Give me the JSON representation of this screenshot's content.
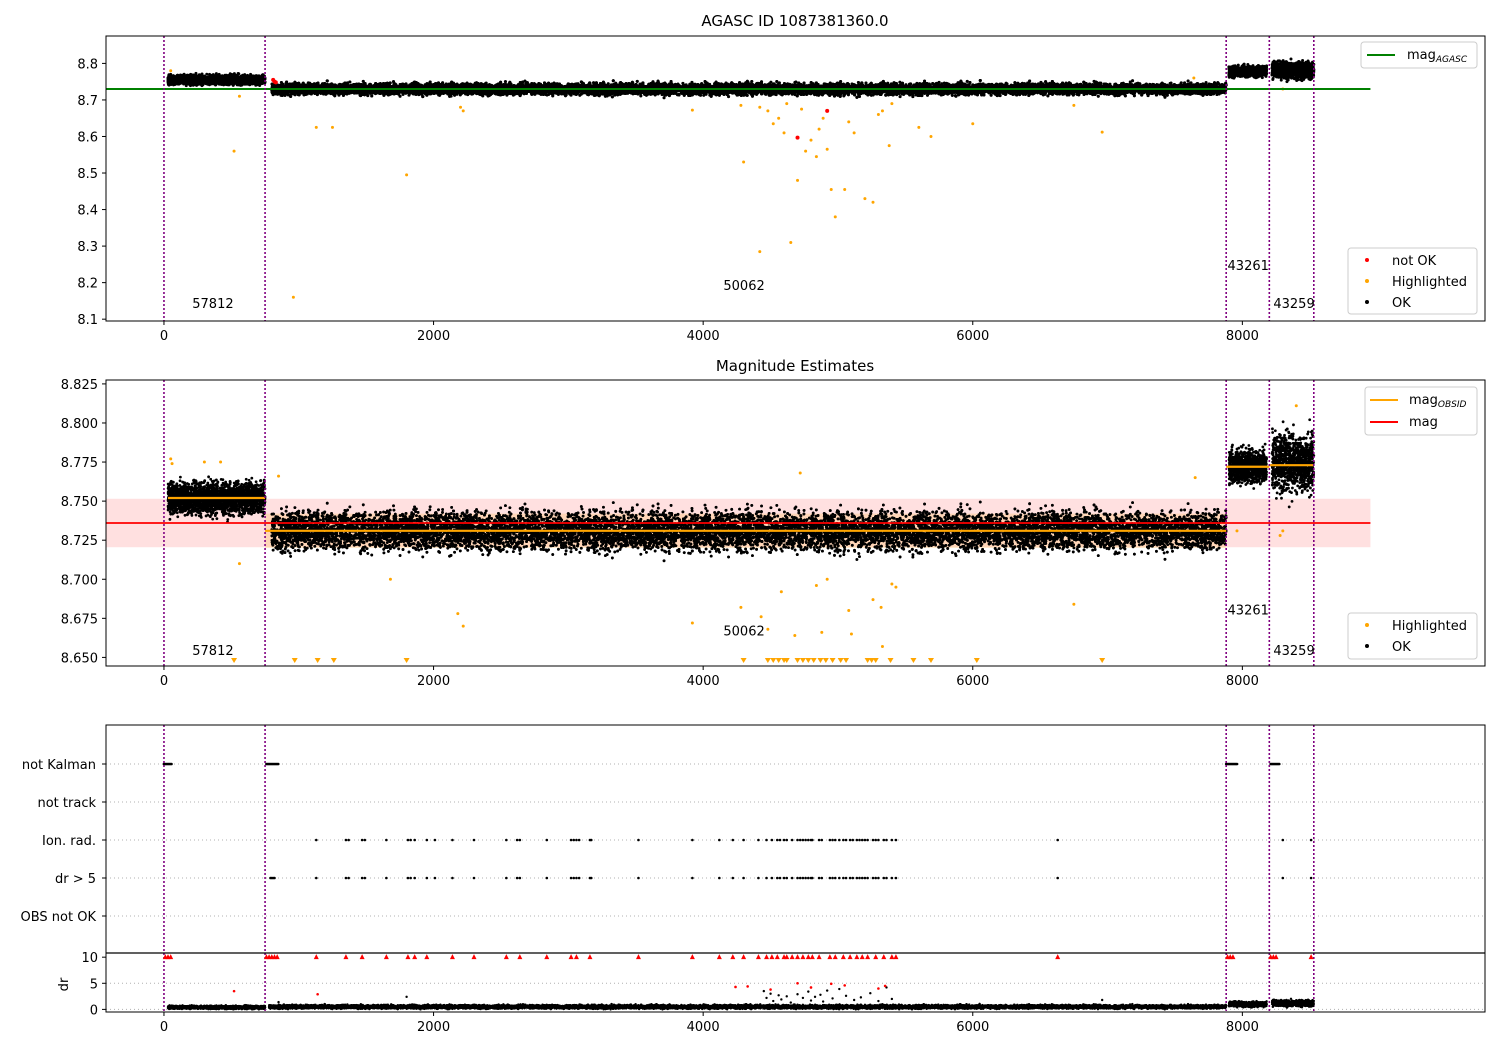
{
  "chart_data": [
    {
      "type": "scatter",
      "title": "AGASC ID 1087381360.0",
      "xlabel": "",
      "ylabel": "",
      "xlim": [
        -430,
        9800
      ],
      "ylim": [
        8.095,
        8.875
      ],
      "xticks": [
        0,
        2000,
        4000,
        6000,
        8000
      ],
      "xtick_labels": [
        "0",
        "2000",
        "4000",
        "6000",
        "8000"
      ],
      "yticks": [
        8.1,
        8.2,
        8.3,
        8.4,
        8.5,
        8.6,
        8.7,
        8.8
      ],
      "ytick_labels": [
        "8.1",
        "8.2",
        "8.3",
        "8.4",
        "8.5",
        "8.6",
        "8.7",
        "8.8"
      ],
      "vlines": [
        0,
        750,
        7880,
        8200,
        8530
      ],
      "obsid_labels": [
        {
          "x": 210,
          "y": 8.13,
          "text": "57812"
        },
        {
          "x": 4150,
          "y": 8.18,
          "text": "50062"
        },
        {
          "x": 7890,
          "y": 8.235,
          "text": "43261"
        },
        {
          "x": 8230,
          "y": 8.13,
          "text": "43259"
        }
      ],
      "hlines": [
        {
          "name": "mag_AGASC",
          "label_main": "mag",
          "label_sub": "AGASC",
          "y": 8.73,
          "x0": -430,
          "x1": 8950,
          "color": "#008000"
        }
      ],
      "scatter_legend": [
        {
          "name": "not OK",
          "color": "#ff0000"
        },
        {
          "name": "Highlighted",
          "color": "#ffa500"
        },
        {
          "name": "OK",
          "color": "#000000"
        }
      ],
      "ok_segments": [
        {
          "x0": 30,
          "x1": 750,
          "y": 8.755,
          "spread": 0.012
        },
        {
          "x0": 800,
          "x1": 7880,
          "y": 8.73,
          "spread": 0.015
        },
        {
          "x0": 7900,
          "x1": 8180,
          "y": 8.778,
          "spread": 0.014
        },
        {
          "x0": 8220,
          "x1": 8530,
          "y": 8.782,
          "spread": 0.022
        }
      ],
      "not_ok_points": [
        {
          "x": 810,
          "y": 8.755
        },
        {
          "x": 820,
          "y": 8.75
        },
        {
          "x": 830,
          "y": 8.748
        },
        {
          "x": 4700,
          "y": 8.597
        },
        {
          "x": 4920,
          "y": 8.67
        }
      ],
      "highlighted_points": [
        {
          "x": 50,
          "y": 8.78
        },
        {
          "x": 520,
          "y": 8.56
        },
        {
          "x": 560,
          "y": 8.71
        },
        {
          "x": 960,
          "y": 8.16
        },
        {
          "x": 1130,
          "y": 8.625
        },
        {
          "x": 1250,
          "y": 8.625
        },
        {
          "x": 1800,
          "y": 8.495
        },
        {
          "x": 2200,
          "y": 8.68
        },
        {
          "x": 2220,
          "y": 8.67
        },
        {
          "x": 3920,
          "y": 8.672
        },
        {
          "x": 4280,
          "y": 8.685
        },
        {
          "x": 4300,
          "y": 8.53
        },
        {
          "x": 4420,
          "y": 8.68
        },
        {
          "x": 4480,
          "y": 8.67
        },
        {
          "x": 4520,
          "y": 8.635
        },
        {
          "x": 4560,
          "y": 8.65
        },
        {
          "x": 4600,
          "y": 8.61
        },
        {
          "x": 4620,
          "y": 8.69
        },
        {
          "x": 4650,
          "y": 8.31
        },
        {
          "x": 4700,
          "y": 8.48
        },
        {
          "x": 4730,
          "y": 8.675
        },
        {
          "x": 4760,
          "y": 8.56
        },
        {
          "x": 4800,
          "y": 8.59
        },
        {
          "x": 4840,
          "y": 8.545
        },
        {
          "x": 4860,
          "y": 8.62
        },
        {
          "x": 4890,
          "y": 8.65
        },
        {
          "x": 4920,
          "y": 8.565
        },
        {
          "x": 4950,
          "y": 8.455
        },
        {
          "x": 4980,
          "y": 8.38
        },
        {
          "x": 5050,
          "y": 8.455
        },
        {
          "x": 5080,
          "y": 8.64
        },
        {
          "x": 5120,
          "y": 8.61
        },
        {
          "x": 5200,
          "y": 8.43
        },
        {
          "x": 5260,
          "y": 8.42
        },
        {
          "x": 5300,
          "y": 8.66
        },
        {
          "x": 5330,
          "y": 8.67
        },
        {
          "x": 5380,
          "y": 8.575
        },
        {
          "x": 5400,
          "y": 8.69
        },
        {
          "x": 5600,
          "y": 8.625
        },
        {
          "x": 5690,
          "y": 8.6
        },
        {
          "x": 6000,
          "y": 8.635
        },
        {
          "x": 6750,
          "y": 8.685
        },
        {
          "x": 6960,
          "y": 8.612
        },
        {
          "x": 7640,
          "y": 8.76
        },
        {
          "x": 8300,
          "y": 8.73
        },
        {
          "x": 4420,
          "y": 8.285
        }
      ]
    },
    {
      "type": "scatter",
      "title": "Magnitude Estimates",
      "xlabel": "",
      "ylabel": "",
      "xlim": [
        -430,
        9800
      ],
      "ylim": [
        8.6445,
        8.8275
      ],
      "xticks": [
        0,
        2000,
        4000,
        6000,
        8000
      ],
      "xtick_labels": [
        "0",
        "2000",
        "4000",
        "6000",
        "8000"
      ],
      "yticks": [
        8.65,
        8.675,
        8.7,
        8.725,
        8.75,
        8.775,
        8.8,
        8.825
      ],
      "ytick_labels": [
        "8.650",
        "8.675",
        "8.700",
        "8.725",
        "8.750",
        "8.775",
        "8.800",
        "8.825"
      ],
      "vlines": [
        0,
        750,
        7880,
        8200,
        8530
      ],
      "obsid_labels": [
        {
          "x": 210,
          "y": 8.6515,
          "text": "57812"
        },
        {
          "x": 4150,
          "y": 8.664,
          "text": "50062"
        },
        {
          "x": 7890,
          "y": 8.6775,
          "text": "43261"
        },
        {
          "x": 8230,
          "y": 8.6515,
          "text": "43259"
        }
      ],
      "band": {
        "y0": 8.7205,
        "y1": 8.7515,
        "x0": -430,
        "x1": 8950,
        "color": "#ff9999"
      },
      "mag_line": {
        "name": "mag",
        "y": 8.736,
        "x0": -430,
        "x1": 8950,
        "color": "#ff0000"
      },
      "obsid_lines": [
        {
          "x0": 30,
          "x1": 750,
          "y": 8.752
        },
        {
          "x0": 750,
          "x1": 7880,
          "y": 8.731
        },
        {
          "x0": 7880,
          "x1": 8200,
          "y": 8.772
        },
        {
          "x0": 8200,
          "x1": 8530,
          "y": 8.773
        }
      ],
      "line_legend": [
        {
          "name": "mag_OBSID",
          "label_main": "mag",
          "label_sub": "OBSID",
          "color": "#ffa500"
        },
        {
          "name": "mag",
          "label_main": "mag",
          "label_sub": "",
          "color": "#ff0000"
        }
      ],
      "scatter_legend": [
        {
          "name": "Highlighted",
          "color": "#ffa500"
        },
        {
          "name": "OK",
          "color": "#000000"
        }
      ],
      "ok_segments": [
        {
          "x0": 30,
          "x1": 750,
          "y": 8.752,
          "spread": 0.01
        },
        {
          "x0": 800,
          "x1": 7880,
          "y": 8.731,
          "spread": 0.012
        },
        {
          "x0": 7900,
          "x1": 8180,
          "y": 8.772,
          "spread": 0.01
        },
        {
          "x0": 8220,
          "x1": 8530,
          "y": 8.775,
          "spread": 0.018
        }
      ],
      "highlighted_points": [
        {
          "x": 50,
          "y": 8.777
        },
        {
          "x": 60,
          "y": 8.774
        },
        {
          "x": 300,
          "y": 8.775
        },
        {
          "x": 420,
          "y": 8.775
        },
        {
          "x": 560,
          "y": 8.71
        },
        {
          "x": 850,
          "y": 8.766
        },
        {
          "x": 1680,
          "y": 8.7
        },
        {
          "x": 2180,
          "y": 8.678
        },
        {
          "x": 2220,
          "y": 8.67
        },
        {
          "x": 3920,
          "y": 8.672
        },
        {
          "x": 4280,
          "y": 8.682
        },
        {
          "x": 4430,
          "y": 8.676
        },
        {
          "x": 4480,
          "y": 8.668
        },
        {
          "x": 4580,
          "y": 8.692
        },
        {
          "x": 4680,
          "y": 8.664
        },
        {
          "x": 4720,
          "y": 8.768
        },
        {
          "x": 4840,
          "y": 8.696
        },
        {
          "x": 4880,
          "y": 8.666
        },
        {
          "x": 4920,
          "y": 8.7
        },
        {
          "x": 5080,
          "y": 8.68
        },
        {
          "x": 5100,
          "y": 8.665
        },
        {
          "x": 5260,
          "y": 8.687
        },
        {
          "x": 5320,
          "y": 8.682
        },
        {
          "x": 5330,
          "y": 8.657
        },
        {
          "x": 5400,
          "y": 8.697
        },
        {
          "x": 5430,
          "y": 8.695
        },
        {
          "x": 6750,
          "y": 8.684
        },
        {
          "x": 7650,
          "y": 8.765
        },
        {
          "x": 7960,
          "y": 8.731
        },
        {
          "x": 8280,
          "y": 8.728
        },
        {
          "x": 8300,
          "y": 8.731
        },
        {
          "x": 8400,
          "y": 8.811
        }
      ],
      "lower_limit_x": [
        520,
        970,
        1140,
        1260,
        1800,
        4300,
        4480,
        4520,
        4560,
        4600,
        4620,
        4700,
        4740,
        4780,
        4820,
        4870,
        4910,
        4960,
        5020,
        5060,
        5220,
        5250,
        5280,
        5390,
        5560,
        5690,
        6030,
        6960
      ]
    },
    {
      "type": "scatter",
      "title": "",
      "xlim": [
        -430,
        9800
      ],
      "xticks": [
        0,
        2000,
        4000,
        6000,
        8000
      ],
      "xtick_labels": [
        "0",
        "2000",
        "4000",
        "6000",
        "8000"
      ],
      "categories": [
        "not Kalman",
        "not track",
        "Ion. rad.",
        "dr > 5",
        "OBS not OK"
      ],
      "vlines": [
        0,
        750,
        7880,
        8200,
        8530
      ],
      "not_kalman_ranges": [
        [
          0,
          60
        ],
        [
          760,
          850
        ],
        [
          7880,
          7960
        ],
        [
          8210,
          8280
        ]
      ],
      "ion_rad_x": [
        1130,
        1350,
        1370,
        1470,
        1490,
        1650,
        1810,
        1830,
        1860,
        1950,
        2010,
        2140,
        2300,
        2540,
        2620,
        2640,
        2840,
        3020,
        3040,
        3060,
        3080,
        3160,
        3170,
        3520,
        3920,
        4120,
        4220,
        4300,
        4410,
        4470,
        4510,
        4550,
        4570,
        4600,
        4620,
        4660,
        4700,
        4720,
        4740,
        4760,
        4780,
        4800,
        4810,
        4860,
        4880,
        4940,
        4960,
        4980,
        5010,
        5040,
        5060,
        5090,
        5110,
        5140,
        5160,
        5180,
        5200,
        5220,
        5260,
        5280,
        5300,
        5340,
        5360,
        5400,
        5430,
        6630,
        8300,
        8510
      ],
      "dr_gt5_x": [
        790,
        800,
        810,
        820,
        1130,
        1350,
        1370,
        1470,
        1490,
        1650,
        1810,
        1830,
        1860,
        1950,
        2010,
        2140,
        2300,
        2540,
        2620,
        2640,
        2840,
        3020,
        3040,
        3060,
        3080,
        3160,
        3170,
        3520,
        3920,
        4120,
        4220,
        4300,
        4410,
        4470,
        4510,
        4550,
        4570,
        4600,
        4620,
        4660,
        4700,
        4720,
        4740,
        4760,
        4780,
        4800,
        4810,
        4860,
        4880,
        4940,
        4960,
        4980,
        5010,
        5040,
        5060,
        5090,
        5110,
        5140,
        5160,
        5180,
        5200,
        5220,
        5260,
        5280,
        5300,
        5340,
        5360,
        5400,
        5430,
        6630,
        8300,
        8510
      ]
    },
    {
      "type": "scatter",
      "title": "",
      "xlabel": "",
      "ylabel": "dr",
      "xlim": [
        -430,
        9800
      ],
      "ylim": [
        -0.5,
        10.8
      ],
      "xticks": [
        0,
        2000,
        4000,
        6000,
        8000
      ],
      "xtick_labels": [
        "0",
        "2000",
        "4000",
        "6000",
        "8000"
      ],
      "yticks": [
        0,
        5,
        10
      ],
      "ytick_labels": [
        "0",
        "5",
        "10"
      ],
      "vlines": [
        0,
        750,
        7880,
        8200,
        8530
      ],
      "ok_segments": [
        {
          "x0": 30,
          "x1": 750,
          "y": 0.4,
          "spread": 0.3
        },
        {
          "x0": 780,
          "x1": 7880,
          "y": 0.5,
          "spread": 0.35
        },
        {
          "x0": 7900,
          "x1": 8180,
          "y": 1.0,
          "spread": 0.5
        },
        {
          "x0": 8220,
          "x1": 8530,
          "y": 1.2,
          "spread": 0.6
        }
      ],
      "ok_outliers": [
        {
          "x": 850,
          "y": 1.4
        },
        {
          "x": 4450,
          "y": 3.5
        },
        {
          "x": 4470,
          "y": 2.2
        },
        {
          "x": 4500,
          "y": 3.0
        },
        {
          "x": 4520,
          "y": 1.6
        },
        {
          "x": 4560,
          "y": 2.7
        },
        {
          "x": 4580,
          "y": 1.9
        },
        {
          "x": 4620,
          "y": 2.5
        },
        {
          "x": 4650,
          "y": 1.3
        },
        {
          "x": 4700,
          "y": 2.9
        },
        {
          "x": 4740,
          "y": 2.2
        },
        {
          "x": 4780,
          "y": 3.4
        },
        {
          "x": 4800,
          "y": 1.7
        },
        {
          "x": 4830,
          "y": 2.4
        },
        {
          "x": 4870,
          "y": 2.8
        },
        {
          "x": 4890,
          "y": 1.5
        },
        {
          "x": 4920,
          "y": 3.6
        },
        {
          "x": 4960,
          "y": 2.1
        },
        {
          "x": 5010,
          "y": 3.9
        },
        {
          "x": 5060,
          "y": 2.6
        },
        {
          "x": 5120,
          "y": 1.8
        },
        {
          "x": 5170,
          "y": 2.3
        },
        {
          "x": 5240,
          "y": 3.1
        },
        {
          "x": 5300,
          "y": 1.6
        },
        {
          "x": 5360,
          "y": 4.2
        },
        {
          "x": 5400,
          "y": 2.0
        },
        {
          "x": 1800,
          "y": 2.4
        },
        {
          "x": 6960,
          "y": 1.8
        }
      ],
      "red_points": [
        {
          "x": 520,
          "y": 3.5
        },
        {
          "x": 1140,
          "y": 2.9
        },
        {
          "x": 4240,
          "y": 4.3
        },
        {
          "x": 4330,
          "y": 4.4
        },
        {
          "x": 4500,
          "y": 3.8
        },
        {
          "x": 4700,
          "y": 5.0
        },
        {
          "x": 4800,
          "y": 4.2
        },
        {
          "x": 4950,
          "y": 4.9
        },
        {
          "x": 5050,
          "y": 4.6
        },
        {
          "x": 5300,
          "y": 4.0
        },
        {
          "x": 5350,
          "y": 4.5
        }
      ],
      "red_top_x": [
        10,
        30,
        50,
        760,
        780,
        800,
        820,
        840,
        1130,
        1350,
        1470,
        1650,
        1810,
        1860,
        1950,
        2140,
        2300,
        2540,
        2640,
        2840,
        3020,
        3060,
        3160,
        3520,
        3920,
        4120,
        4220,
        4300,
        4410,
        4470,
        4510,
        4550,
        4600,
        4620,
        4660,
        4700,
        4740,
        4780,
        4810,
        4860,
        4940,
        4980,
        5040,
        5090,
        5140,
        5180,
        5220,
        5280,
        5340,
        5400,
        5430,
        6630,
        7890,
        7910,
        7930,
        8210,
        8230,
        8250,
        8510
      ]
    }
  ]
}
